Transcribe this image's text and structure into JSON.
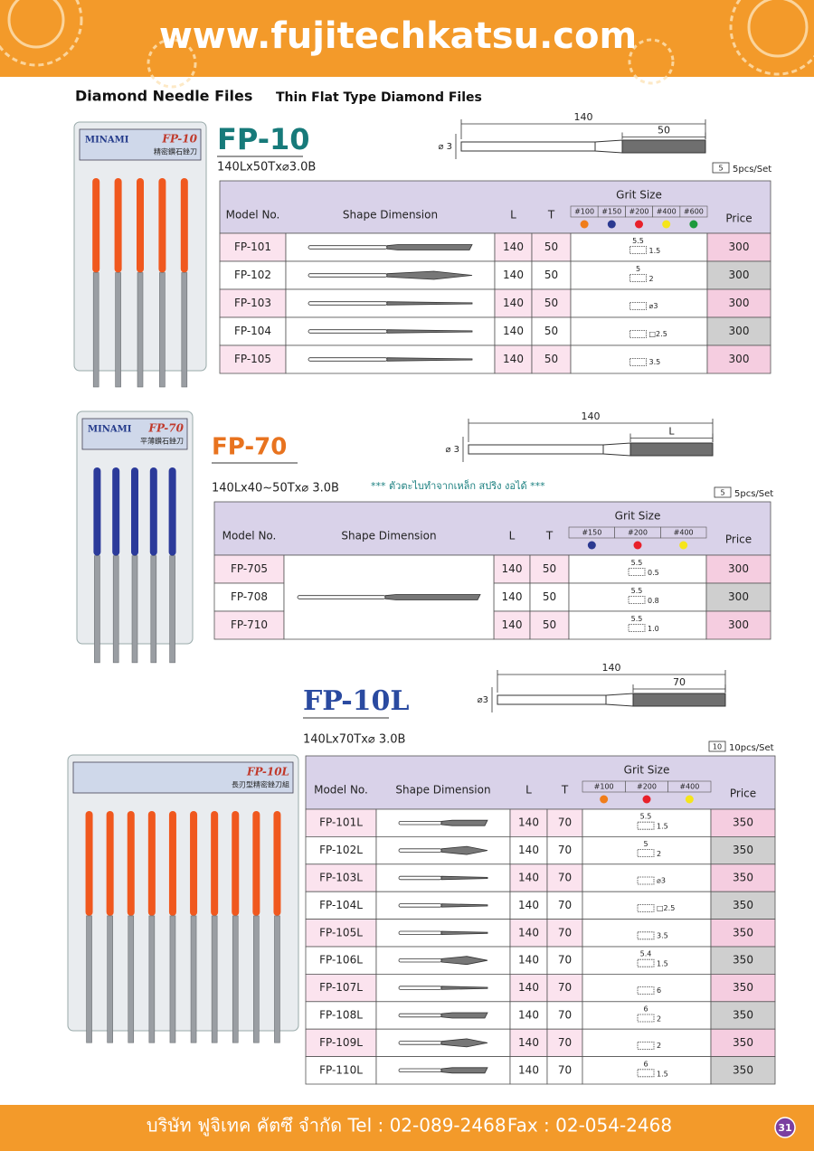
{
  "header": {
    "url": "www.fujitechkatsu.com"
  },
  "heading": {
    "title": "Diamond Needle Files",
    "subtitle": "Thin Flat Type Diamond Files"
  },
  "columns": {
    "model": "Model No.",
    "shape": "Shape Dimension",
    "length": "L",
    "thickness": "T",
    "grit": "Grit Size",
    "price": "Price"
  },
  "products": [
    {
      "code": "FP-10",
      "spec": "140Lx50Tx⌀3.0B",
      "pack_count": "5",
      "pack": "5pcs/Set",
      "photo": {
        "brand": "MINAMI",
        "label": "FP-10",
        "name": "精密鑽石銼刀"
      },
      "diagram": {
        "length": "140",
        "tip": "50",
        "diameter": "⌀ 3"
      },
      "grits": [
        {
          "label": "#100",
          "color": "#f07d1a"
        },
        {
          "label": "#150",
          "color": "#2b3990"
        },
        {
          "label": "#200",
          "color": "#e8202a"
        },
        {
          "label": "#400",
          "color": "#f5e51b"
        },
        {
          "label": "#600",
          "color": "#1d9a3c"
        }
      ],
      "rows": [
        {
          "model": "FP-101",
          "L": 140,
          "T": 50,
          "section": [
            "5.5",
            "1.5"
          ],
          "price": 300
        },
        {
          "model": "FP-102",
          "L": 140,
          "T": 50,
          "section": [
            "5",
            "2"
          ],
          "price": 300
        },
        {
          "model": "FP-103",
          "L": 140,
          "T": 50,
          "section": [
            "⌀3"
          ],
          "price": 300
        },
        {
          "model": "FP-104",
          "L": 140,
          "T": 50,
          "section": [
            "□2.5"
          ],
          "price": 300
        },
        {
          "model": "FP-105",
          "L": 140,
          "T": 50,
          "section": [
            "3.5"
          ],
          "price": 300
        }
      ]
    },
    {
      "code": "FP-70",
      "spec": "140Lx40~50Tx⌀ 3.0B",
      "note": "*** ตัวตะไบทำจากเหล็ก สปริง งอได้ ***",
      "pack_count": "5",
      "pack": "5pcs/Set",
      "photo": {
        "brand": "MINAMI",
        "label": "FP-70",
        "name": "平薄鑽石銼刀"
      },
      "diagram": {
        "length": "140",
        "tip": "L",
        "diameter": "⌀ 3"
      },
      "grits": [
        {
          "label": "#150",
          "color": "#2b3990"
        },
        {
          "label": "#200",
          "color": "#e8202a"
        },
        {
          "label": "#400",
          "color": "#f5e51b"
        }
      ],
      "rows": [
        {
          "model": "FP-705",
          "L": 140,
          "T": 50,
          "section": [
            "5.5",
            "0.5"
          ],
          "price": 300
        },
        {
          "model": "FP-708",
          "L": 140,
          "T": 50,
          "section": [
            "5.5",
            "0.8"
          ],
          "price": 300
        },
        {
          "model": "FP-710",
          "L": 140,
          "T": 50,
          "section": [
            "5.5",
            "1.0"
          ],
          "price": 300
        }
      ]
    },
    {
      "code": "FP-10L",
      "spec": "140Lx70Tx⌀ 3.0B",
      "pack_count": "10",
      "pack": "10pcs/Set",
      "photo": {
        "label": "FP-10L",
        "name": "長刃型精密銼刀組"
      },
      "diagram": {
        "length": "140",
        "tip": "70",
        "diameter": "⌀3"
      },
      "grits": [
        {
          "label": "#100",
          "color": "#f07d1a"
        },
        {
          "label": "#200",
          "color": "#e8202a"
        },
        {
          "label": "#400",
          "color": "#f5e51b"
        }
      ],
      "rows": [
        {
          "model": "FP-101L",
          "L": 140,
          "T": 70,
          "section": [
            "5.5",
            "1.5"
          ],
          "price": 350
        },
        {
          "model": "FP-102L",
          "L": 140,
          "T": 70,
          "section": [
            "5",
            "2"
          ],
          "price": 350
        },
        {
          "model": "FP-103L",
          "L": 140,
          "T": 70,
          "section": [
            "⌀3"
          ],
          "price": 350
        },
        {
          "model": "FP-104L",
          "L": 140,
          "T": 70,
          "section": [
            "□2.5"
          ],
          "price": 350
        },
        {
          "model": "FP-105L",
          "L": 140,
          "T": 70,
          "section": [
            "3.5"
          ],
          "price": 350
        },
        {
          "model": "FP-106L",
          "L": 140,
          "T": 70,
          "section": [
            "5.4",
            "1.5"
          ],
          "price": 350
        },
        {
          "model": "FP-107L",
          "L": 140,
          "T": 70,
          "section": [
            "6"
          ],
          "price": 350
        },
        {
          "model": "FP-108L",
          "L": 140,
          "T": 70,
          "section": [
            "6",
            "2"
          ],
          "price": 350
        },
        {
          "model": "FP-109L",
          "L": 140,
          "T": 70,
          "section": [
            "2"
          ],
          "price": 350
        },
        {
          "model": "FP-110L",
          "L": 140,
          "T": 70,
          "section": [
            "6",
            "1.5"
          ],
          "price": 350
        }
      ]
    }
  ],
  "footer": {
    "company": "บริษัท ฟูจิเทค คัตซึ จำกัด",
    "tel": "Tel : 02-089-2468",
    "fax": "Fax : 02-054-2468",
    "page": "31"
  }
}
